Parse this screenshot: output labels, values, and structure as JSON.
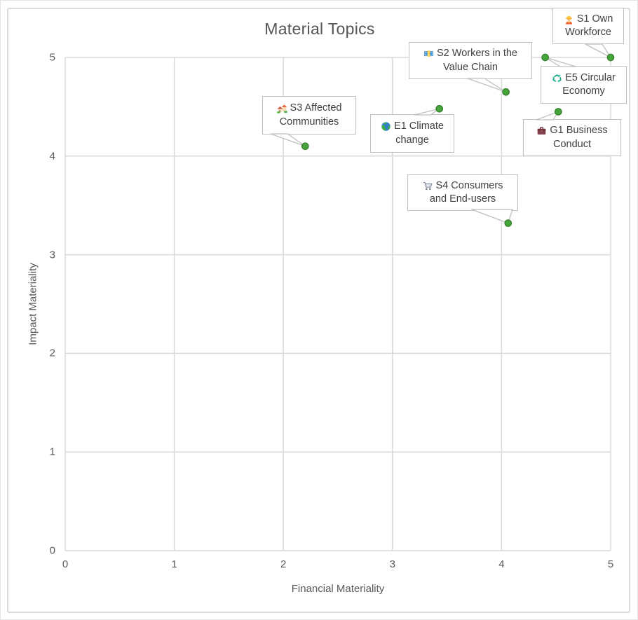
{
  "chart_data": {
    "type": "scatter",
    "title": "Material Topics",
    "xlabel": "Financial Materiality",
    "ylabel": "Impact Materiality",
    "xlim": [
      0,
      5
    ],
    "ylim": [
      0,
      5
    ],
    "x_ticks": [
      0,
      1,
      2,
      3,
      4,
      5
    ],
    "y_ticks": [
      0,
      1,
      2,
      3,
      4,
      5
    ],
    "grid": true,
    "legend": false,
    "points": [
      {
        "id": "S1",
        "label": "S1 Own Workforce",
        "lines": [
          "S1 Own",
          "Workforce"
        ],
        "icon": "construction-worker",
        "x": 5.0,
        "y": 5.0
      },
      {
        "id": "S2",
        "label": "S2 Workers in the Value Chain",
        "lines": [
          "S2 Workers in the",
          "Value Chain"
        ],
        "icon": "euro-banknote",
        "x": 4.04,
        "y": 4.65
      },
      {
        "id": "E5",
        "label": "E5 Circular Economy",
        "lines": [
          "E5 Circular",
          "Economy"
        ],
        "icon": "recycle",
        "x": 4.4,
        "y": 5.0
      },
      {
        "id": "E1",
        "label": "E1 Climate change",
        "lines": [
          "E1 Climate",
          "change"
        ],
        "icon": "globe",
        "x": 3.43,
        "y": 4.48
      },
      {
        "id": "G1",
        "label": "G1 Business Conduct",
        "lines": [
          "G1 Business",
          "Conduct"
        ],
        "icon": "briefcase",
        "x": 4.52,
        "y": 4.45
      },
      {
        "id": "S3",
        "label": "S3 Affected Communities",
        "lines": [
          "S3 Affected",
          "Communities"
        ],
        "icon": "houses",
        "x": 2.2,
        "y": 4.1
      },
      {
        "id": "S4",
        "label": "S4 Consumers and End-users",
        "lines": [
          "S4 Consumers",
          "and End-users"
        ],
        "icon": "shopping-cart",
        "x": 4.06,
        "y": 3.32
      }
    ]
  },
  "colors": {
    "marker_fill": "#46A63C",
    "marker_edge": "#38842F",
    "grid": "#D9D9D9",
    "frame_border": "#DBDBDB",
    "callout_border": "#BFBFBF",
    "label_text": "#3F3F3F",
    "axis_text": "#595959",
    "title_text": "#555555",
    "background": "#FFFFFF"
  }
}
